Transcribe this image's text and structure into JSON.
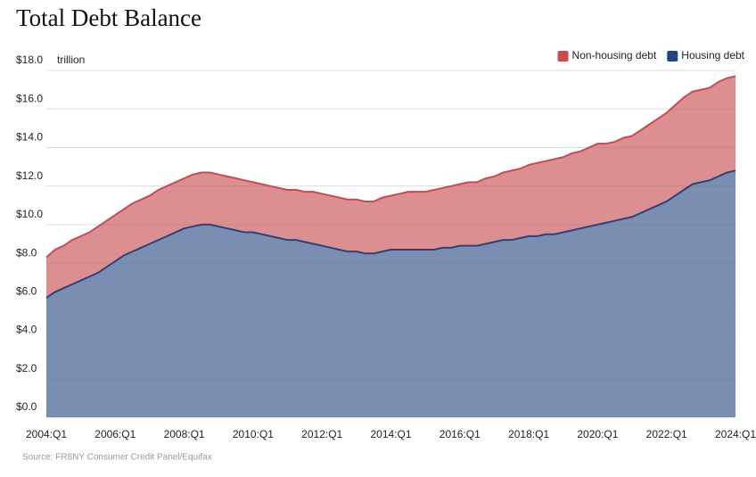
{
  "chart_data": {
    "type": "stacked-area",
    "title": "Total Debt Balance",
    "y_unit_label": "trillion",
    "source": "Source: FR8NY Consumer Credit Panel/Equifax",
    "categories": [
      "2004:Q1",
      null,
      null,
      null,
      null,
      null,
      null,
      null,
      "2006:Q1",
      null,
      null,
      null,
      null,
      null,
      null,
      null,
      "2008:Q1",
      null,
      null,
      null,
      null,
      null,
      null,
      null,
      "2010:Q1",
      null,
      null,
      null,
      null,
      null,
      null,
      null,
      "2012:Q1",
      null,
      null,
      null,
      null,
      null,
      null,
      null,
      "2014:Q1",
      null,
      null,
      null,
      null,
      null,
      null,
      null,
      "2016:Q1",
      null,
      null,
      null,
      null,
      null,
      null,
      null,
      "2018:Q1",
      null,
      null,
      null,
      null,
      null,
      null,
      null,
      "2020:Q1",
      null,
      null,
      null,
      null,
      null,
      null,
      null,
      "2022:Q1",
      null,
      null,
      null,
      null,
      null,
      null,
      null,
      "2024:Q1"
    ],
    "series": [
      {
        "name": "Non-housing debt",
        "color": "#cc4a4f",
        "fill": "#dc8f90",
        "values": [
          2.1,
          2.2,
          2.2,
          2.3,
          2.3,
          2.3,
          2.4,
          2.4,
          2.4,
          2.4,
          2.5,
          2.5,
          2.5,
          2.6,
          2.6,
          2.6,
          2.6,
          2.7,
          2.7,
          2.7,
          2.7,
          2.7,
          2.7,
          2.7,
          2.6,
          2.6,
          2.6,
          2.6,
          2.6,
          2.6,
          2.6,
          2.7,
          2.7,
          2.7,
          2.7,
          2.7,
          2.7,
          2.7,
          2.7,
          2.8,
          2.8,
          2.9,
          3.0,
          3.0,
          3.0,
          3.1,
          3.1,
          3.2,
          3.2,
          3.3,
          3.3,
          3.4,
          3.4,
          3.5,
          3.6,
          3.6,
          3.7,
          3.8,
          3.8,
          3.9,
          3.9,
          4.0,
          4.0,
          4.1,
          4.2,
          4.1,
          4.1,
          4.2,
          4.2,
          4.3,
          4.4,
          4.5,
          4.6,
          4.7,
          4.8,
          4.8,
          4.8,
          4.8,
          4.9,
          4.9,
          4.9
        ]
      },
      {
        "name": "Housing debt",
        "color": "#24467f",
        "fill": "#7a8eb2",
        "values": [
          6.2,
          6.5,
          6.7,
          6.9,
          7.1,
          7.3,
          7.5,
          7.8,
          8.1,
          8.4,
          8.6,
          8.8,
          9.0,
          9.2,
          9.4,
          9.6,
          9.8,
          9.9,
          10.0,
          10.0,
          9.9,
          9.8,
          9.7,
          9.6,
          9.6,
          9.5,
          9.4,
          9.3,
          9.2,
          9.2,
          9.1,
          9.0,
          8.9,
          8.8,
          8.7,
          8.6,
          8.6,
          8.5,
          8.5,
          8.6,
          8.7,
          8.7,
          8.7,
          8.7,
          8.7,
          8.7,
          8.8,
          8.8,
          8.9,
          8.9,
          8.9,
          9.0,
          9.1,
          9.2,
          9.2,
          9.3,
          9.4,
          9.4,
          9.5,
          9.5,
          9.6,
          9.7,
          9.8,
          9.9,
          10.0,
          10.1,
          10.2,
          10.3,
          10.4,
          10.6,
          10.8,
          11.0,
          11.2,
          11.5,
          11.8,
          12.1,
          12.2,
          12.3,
          12.5,
          12.7,
          12.8
        ]
      }
    ],
    "ylim": [
      0,
      18
    ],
    "yticks": [
      {
        "value": 0,
        "label": "$0.0"
      },
      {
        "value": 2,
        "label": "$2.0"
      },
      {
        "value": 4,
        "label": "$4.0"
      },
      {
        "value": 6,
        "label": "$6.0"
      },
      {
        "value": 8,
        "label": "$8.0"
      },
      {
        "value": 10,
        "label": "$10.0"
      },
      {
        "value": 12,
        "label": "$12.0"
      },
      {
        "value": 14,
        "label": "$14.0"
      },
      {
        "value": 16,
        "label": "$16.0"
      },
      {
        "value": 18,
        "label": "$18.0"
      }
    ],
    "grid": true,
    "legend": "top-right"
  }
}
